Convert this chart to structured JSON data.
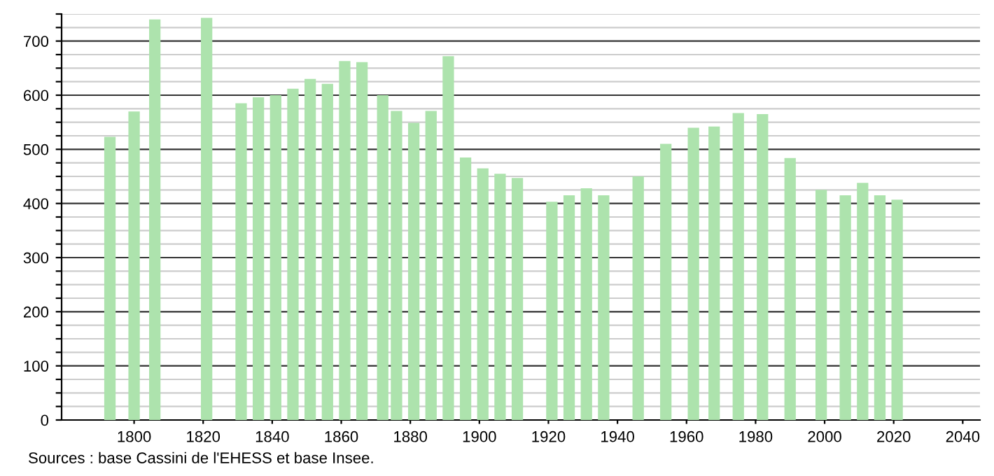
{
  "chart_data": {
    "type": "bar",
    "x": [
      1793,
      1800,
      1806,
      1821,
      1831,
      1836,
      1841,
      1846,
      1851,
      1856,
      1861,
      1866,
      1872,
      1876,
      1881,
      1886,
      1891,
      1896,
      1901,
      1906,
      1911,
      1921,
      1926,
      1931,
      1936,
      1946,
      1954,
      1962,
      1968,
      1975,
      1982,
      1990,
      1999,
      2006,
      2011,
      2016,
      2021
    ],
    "values": [
      523,
      570,
      740,
      743,
      585,
      596,
      600,
      612,
      630,
      621,
      663,
      661,
      600,
      571,
      549,
      571,
      672,
      485,
      465,
      455,
      447,
      403,
      415,
      428,
      415,
      450,
      510,
      540,
      542,
      567,
      565,
      484,
      425,
      415,
      438,
      415,
      407
    ],
    "color": "#ade3ad",
    "xlim": [
      1779,
      2045
    ],
    "xticks": [
      1800,
      1820,
      1840,
      1860,
      1880,
      1900,
      1920,
      1940,
      1960,
      1980,
      2000,
      2020,
      2040
    ],
    "ylim": [
      0,
      750
    ],
    "yticks": [
      0,
      {
        "value": 25,
        "label": null
      },
      {
        "value": 50,
        "label": null
      },
      {
        "value": 75,
        "label": null
      },
      100,
      {
        "value": 125,
        "label": null
      },
      {
        "value": 150,
        "label": null
      },
      {
        "value": 175,
        "label": null
      },
      200,
      {
        "value": 225,
        "label": null
      },
      {
        "value": 250,
        "label": null
      },
      {
        "value": 275,
        "label": null
      },
      300,
      {
        "value": 325,
        "label": null
      },
      {
        "value": 350,
        "label": null
      },
      {
        "value": 375,
        "label": null
      },
      400,
      {
        "value": 425,
        "label": null
      },
      {
        "value": 450,
        "label": null
      },
      {
        "value": 475,
        "label": null
      },
      500,
      {
        "value": 525,
        "label": null
      },
      {
        "value": 550,
        "label": null
      },
      {
        "value": 575,
        "label": null
      },
      600,
      {
        "value": 625,
        "label": null
      },
      {
        "value": 650,
        "label": null
      },
      {
        "value": 675,
        "label": null
      },
      700,
      {
        "value": 725,
        "label": null
      },
      {
        "value": 750,
        "label": null
      }
    ],
    "grid": "y",
    "annotations": [
      "Sources : base Cassini de l'EHESS et base Insee."
    ]
  }
}
